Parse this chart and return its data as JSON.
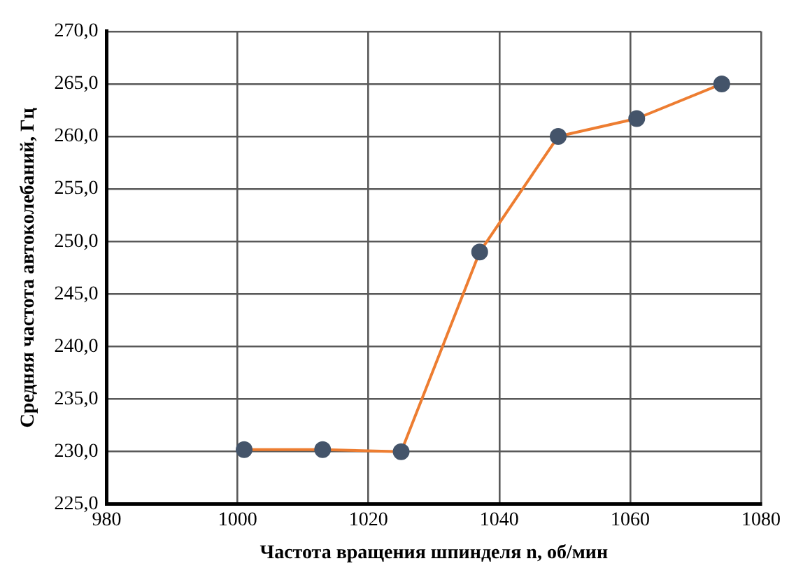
{
  "chart_data": {
    "type": "line",
    "xlabel": "Частота вращения шпинделя n, об/мин",
    "ylabel": "Средняя частота автоколебаний, Гц",
    "x": [
      1001,
      1013,
      1025,
      1037,
      1049,
      1061,
      1074
    ],
    "series": [
      {
        "color": "#ed7d31",
        "colors": [
          "#44546a",
          "#44546a",
          "#44546a",
          "#44546a",
          "#44546a",
          "#44546a",
          "#44546a"
        ],
        "values": [
          230.2,
          230.2,
          230.0,
          249.0,
          260.0,
          261.7,
          265.0
        ]
      }
    ],
    "xlim": [
      980,
      1080
    ],
    "xticks": [
      980,
      1000,
      1020,
      1040,
      1060,
      1080
    ],
    "ylim": [
      225,
      270
    ],
    "yticks": [
      {
        "value": 225,
        "label": "225,0"
      },
      {
        "value": 230,
        "label": "230,0"
      },
      {
        "value": 235,
        "label": "235,0"
      },
      {
        "value": 240,
        "label": "240,0"
      },
      {
        "value": 245,
        "label": "245,0"
      },
      {
        "value": 250,
        "label": "250,0"
      },
      {
        "value": 255,
        "label": "255,0"
      },
      {
        "value": 260,
        "label": "260,0"
      },
      {
        "value": 265,
        "label": "265,0"
      },
      {
        "value": 270,
        "label": "270,0"
      }
    ],
    "grid": true,
    "legend": false,
    "marker": "circle",
    "line_style": "solid"
  }
}
